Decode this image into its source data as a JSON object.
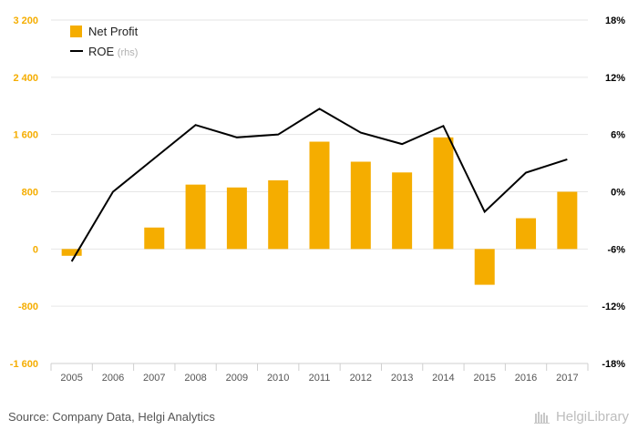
{
  "chart_data": {
    "type": "bar",
    "categories": [
      "2005",
      "2006",
      "2007",
      "2008",
      "2009",
      "2010",
      "2011",
      "2012",
      "2013",
      "2014",
      "2015",
      "2016",
      "2017"
    ],
    "series": [
      {
        "name": "Net Profit",
        "kind": "bar",
        "axis": "left",
        "color": "#F5AD00",
        "values": [
          -95,
          0,
          300,
          900,
          860,
          960,
          1500,
          1220,
          1070,
          1560,
          -500,
          430,
          800
        ]
      },
      {
        "name": "ROE",
        "kind": "line",
        "axis": "right",
        "color": "#000000",
        "values": [
          -7.3,
          0,
          3.5,
          7.0,
          5.7,
          6.0,
          8.7,
          6.2,
          5.0,
          6.9,
          -2.1,
          2.0,
          3.4
        ]
      }
    ],
    "y_left": {
      "min": -1600,
      "max": 3200,
      "ticks": [
        -1600,
        -800,
        0,
        800,
        1600,
        2400,
        3200
      ],
      "tick_labels": [
        "-1 600",
        "-800",
        "0",
        "800",
        "1 600",
        "2 400",
        "3 200"
      ]
    },
    "y_right": {
      "min": -18,
      "max": 18,
      "ticks": [
        -18,
        -12,
        -6,
        0,
        6,
        12,
        18
      ],
      "tick_labels": [
        "-18%",
        "-12%",
        "-6%",
        "0%",
        "6%",
        "12%",
        "18%"
      ]
    },
    "legend": {
      "position": "top-left",
      "items": [
        {
          "label": "Net Profit",
          "suffix": ""
        },
        {
          "label": "ROE",
          "suffix": "(rhs)"
        }
      ]
    },
    "grid": true,
    "title": "",
    "xlabel": "",
    "ylabel": ""
  },
  "footer": {
    "source": "Source: Company Data, Helgi Analytics",
    "brand": "HelgiLibrary"
  },
  "colors": {
    "left_tick": "#F5AD00",
    "right_tick": "#000000",
    "grid": "#e6e6e6"
  }
}
